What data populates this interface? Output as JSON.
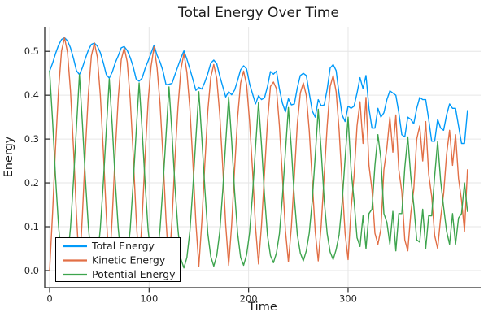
{
  "figure": {
    "title": "Total Energy Over Time",
    "background": "#ffffff",
    "text_color": "#1c1c1c",
    "tick_label_color": "#262626",
    "axis_color": "#2b2b2b",
    "grid_color": "#e6e6e6"
  },
  "chart_data": {
    "type": "line",
    "title": "Total Energy Over Time",
    "xlabel": "Time",
    "ylabel": "Energy",
    "xlim": [
      -4.9,
      434.1
    ],
    "ylim": [
      -0.039,
      0.556
    ],
    "x_ticks": [
      0,
      100,
      200,
      300
    ],
    "x_tick_labels": [
      "0",
      "100",
      "200",
      "300"
    ],
    "y_ticks": [
      0.0,
      0.1,
      0.2,
      0.3,
      0.4,
      0.5
    ],
    "y_tick_labels": [
      "0.0",
      "0.1",
      "0.2",
      "0.3",
      "0.4",
      "0.5"
    ],
    "grid": true,
    "legend": {
      "position": "bottom-left",
      "background": "#ffffff",
      "border_color": "#000000"
    },
    "x_start": 0,
    "x_step": 3,
    "series": [
      {
        "name": "Total Energy",
        "color": "#009AF9",
        "values": [
          0.455,
          0.473,
          0.495,
          0.514,
          0.527,
          0.531,
          0.524,
          0.508,
          0.484,
          0.456,
          0.447,
          0.463,
          0.484,
          0.503,
          0.516,
          0.519,
          0.512,
          0.497,
          0.474,
          0.447,
          0.439,
          0.453,
          0.474,
          0.49,
          0.508,
          0.511,
          0.502,
          0.486,
          0.465,
          0.437,
          0.432,
          0.439,
          0.461,
          0.478,
          0.496,
          0.514,
          0.491,
          0.476,
          0.455,
          0.424,
          0.425,
          0.427,
          0.447,
          0.466,
          0.485,
          0.501,
          0.482,
          0.46,
          0.436,
          0.411,
          0.418,
          0.414,
          0.43,
          0.449,
          0.473,
          0.48,
          0.472,
          0.444,
          0.42,
          0.396,
          0.408,
          0.401,
          0.412,
          0.434,
          0.458,
          0.467,
          0.46,
          0.426,
          0.403,
          0.38,
          0.399,
          0.39,
          0.394,
          0.42,
          0.454,
          0.448,
          0.455,
          0.414,
          0.382,
          0.362,
          0.392,
          0.378,
          0.38,
          0.417,
          0.445,
          0.45,
          0.445,
          0.404,
          0.364,
          0.35,
          0.39,
          0.376,
          0.378,
          0.414,
          0.462,
          0.47,
          0.456,
          0.402,
          0.355,
          0.34,
          0.375,
          0.37,
          0.375,
          0.405,
          0.44,
          0.415,
          0.445,
          0.37,
          0.325,
          0.325,
          0.37,
          0.35,
          0.36,
          0.39,
          0.41,
          0.405,
          0.4,
          0.36,
          0.31,
          0.305,
          0.35,
          0.345,
          0.335,
          0.37,
          0.395,
          0.39,
          0.39,
          0.345,
          0.295,
          0.295,
          0.345,
          0.325,
          0.32,
          0.355,
          0.38,
          0.37,
          0.37,
          0.33,
          0.29,
          0.29,
          0.365
        ]
      },
      {
        "name": "Kinetic Energy",
        "color": "#E26F46",
        "values": [
          0.0,
          0.131,
          0.283,
          0.413,
          0.501,
          0.531,
          0.498,
          0.41,
          0.279,
          0.129,
          0.0,
          0.128,
          0.276,
          0.404,
          0.49,
          0.519,
          0.487,
          0.4,
          0.273,
          0.126,
          0.002,
          0.124,
          0.271,
          0.394,
          0.481,
          0.508,
          0.476,
          0.392,
          0.266,
          0.121,
          0.004,
          0.119,
          0.262,
          0.385,
          0.466,
          0.51,
          0.463,
          0.381,
          0.259,
          0.116,
          0.006,
          0.114,
          0.255,
          0.372,
          0.459,
          0.495,
          0.452,
          0.37,
          0.247,
          0.11,
          0.01,
          0.112,
          0.242,
          0.364,
          0.441,
          0.47,
          0.438,
          0.356,
          0.238,
          0.104,
          0.012,
          0.105,
          0.234,
          0.35,
          0.428,
          0.455,
          0.424,
          0.34,
          0.228,
          0.098,
          0.015,
          0.104,
          0.222,
          0.34,
          0.42,
          0.43,
          0.415,
          0.33,
          0.214,
          0.092,
          0.02,
          0.1,
          0.215,
          0.335,
          0.405,
          0.428,
          0.4,
          0.318,
          0.204,
          0.088,
          0.022,
          0.104,
          0.218,
          0.33,
          0.42,
          0.445,
          0.408,
          0.32,
          0.2,
          0.085,
          0.025,
          0.14,
          0.215,
          0.33,
          0.385,
          0.29,
          0.395,
          0.24,
          0.185,
          0.085,
          0.06,
          0.095,
          0.23,
          0.28,
          0.35,
          0.27,
          0.355,
          0.23,
          0.18,
          0.07,
          0.045,
          0.13,
          0.185,
          0.3,
          0.33,
          0.25,
          0.34,
          0.22,
          0.17,
          0.08,
          0.05,
          0.12,
          0.175,
          0.265,
          0.32,
          0.24,
          0.31,
          0.21,
          0.16,
          0.09,
          0.23
        ]
      },
      {
        "name": "Potential Energy",
        "color": "#3DA44D",
        "values": [
          0.455,
          0.342,
          0.212,
          0.101,
          0.026,
          0.0,
          0.026,
          0.098,
          0.205,
          0.327,
          0.447,
          0.335,
          0.208,
          0.099,
          0.026,
          0.0,
          0.025,
          0.097,
          0.201,
          0.321,
          0.437,
          0.329,
          0.203,
          0.096,
          0.027,
          0.003,
          0.026,
          0.094,
          0.199,
          0.316,
          0.428,
          0.32,
          0.199,
          0.093,
          0.03,
          0.004,
          0.028,
          0.095,
          0.196,
          0.308,
          0.419,
          0.313,
          0.192,
          0.094,
          0.026,
          0.006,
          0.03,
          0.09,
          0.189,
          0.301,
          0.408,
          0.302,
          0.188,
          0.085,
          0.032,
          0.01,
          0.034,
          0.088,
          0.182,
          0.292,
          0.396,
          0.296,
          0.178,
          0.084,
          0.03,
          0.012,
          0.036,
          0.086,
          0.175,
          0.282,
          0.384,
          0.286,
          0.172,
          0.08,
          0.034,
          0.018,
          0.04,
          0.084,
          0.168,
          0.27,
          0.372,
          0.278,
          0.165,
          0.082,
          0.04,
          0.022,
          0.045,
          0.086,
          0.16,
          0.262,
          0.368,
          0.272,
          0.16,
          0.084,
          0.042,
          0.025,
          0.048,
          0.082,
          0.155,
          0.255,
          0.35,
          0.23,
          0.16,
          0.075,
          0.055,
          0.125,
          0.05,
          0.13,
          0.14,
          0.24,
          0.31,
          0.255,
          0.13,
          0.11,
          0.06,
          0.135,
          0.045,
          0.13,
          0.13,
          0.235,
          0.305,
          0.215,
          0.15,
          0.07,
          0.065,
          0.14,
          0.05,
          0.125,
          0.125,
          0.215,
          0.295,
          0.205,
          0.145,
          0.09,
          0.06,
          0.13,
          0.06,
          0.12,
          0.13,
          0.2,
          0.135
        ]
      }
    ]
  }
}
